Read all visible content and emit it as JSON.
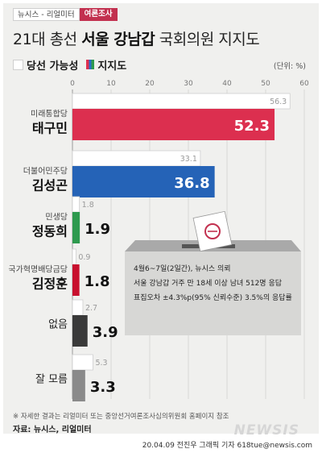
{
  "tags": {
    "brand": "뉴시스 - 리얼미터",
    "type": "여론조사"
  },
  "headline": {
    "prefix": "21대 총선",
    "strong": "서울 강남갑",
    "suffix": "국회의원 지지도"
  },
  "legend": {
    "win_label": "당선 가능성",
    "support_label": "지지도"
  },
  "unit_text": "(단위: %)",
  "chart_data": {
    "type": "bar",
    "orientation": "horizontal",
    "xlim": [
      0,
      60
    ],
    "x_ticks": [
      0,
      10,
      20,
      30,
      40,
      50,
      60
    ],
    "series": [
      {
        "name": "당선 가능성",
        "values": [
          56.3,
          33.1,
          1.8,
          0.9,
          2.7,
          5.3
        ]
      },
      {
        "name": "지지도",
        "values": [
          52.3,
          36.8,
          1.9,
          1.8,
          3.9,
          3.3
        ]
      }
    ],
    "rows": [
      {
        "party": "미래통합당",
        "name": "태구민",
        "win": 56.3,
        "support": 52.3,
        "color": "#dc2f4f"
      },
      {
        "party": "더불어민주당",
        "name": "김성곤",
        "win": 33.1,
        "support": 36.8,
        "color": "#2563b7"
      },
      {
        "party": "민생당",
        "name": "정동희",
        "win": 1.8,
        "support": 1.9,
        "color": "#2e9a4e"
      },
      {
        "party": "국가혁명배당금당",
        "name": "김정훈",
        "win": 0.9,
        "support": 1.8,
        "color": "#c8102e"
      },
      {
        "party": "",
        "name": "없음",
        "win": 2.7,
        "support": 3.9,
        "color": "#3a3a3a"
      },
      {
        "party": "",
        "name": "잘 모름",
        "win": 5.3,
        "support": 3.3,
        "color": "#8a8a8a"
      }
    ]
  },
  "survey_info": [
    "4월6~7일(2일간), 뉴시스 의뢰",
    "서울 강남갑 거주 만 18세 이상 남녀 512명 응답",
    "표집오차 ±4.3%p(95% 신뢰수준) 3.5%의 응답률"
  ],
  "footnote": "※ 자세한 결과는 리얼미터 또는 중앙선거여론조사심의위원회 홈페이지 참조",
  "source": "자료: 뉴시스, 리얼미터",
  "credit": "20.04.09 전진우 그래픽 기자 618tue@newsis.com",
  "watermark": "NEWSIS"
}
